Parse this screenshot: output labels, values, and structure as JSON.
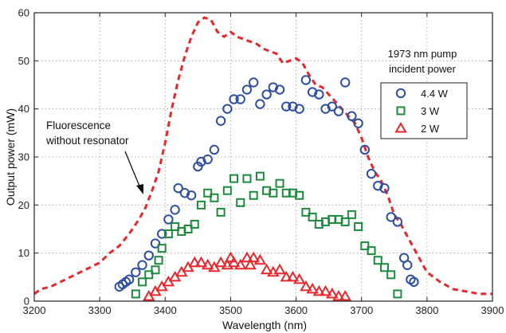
{
  "chart_data": {
    "type": "scatter",
    "xlabel": "Wavelength (nm)",
    "ylabel": "Output power (mW)",
    "xlim": [
      3200,
      3900
    ],
    "ylim": [
      0,
      60
    ],
    "xticks": [
      3200,
      3300,
      3400,
      3500,
      3600,
      3700,
      3800,
      3900
    ],
    "yticks": [
      0,
      10,
      20,
      30,
      40,
      50,
      60
    ],
    "grid": true,
    "legend": {
      "title_line1": "1973 nm pump",
      "title_line2": "incident power",
      "placement": "top-right"
    },
    "annotation": {
      "line1": "Fluorescence",
      "line2": "without resonator"
    },
    "fluorescence": {
      "style": "dashed",
      "color": "#e8262b",
      "x": [
        3200,
        3210,
        3225,
        3240,
        3255,
        3270,
        3285,
        3300,
        3315,
        3330,
        3345,
        3360,
        3370,
        3380,
        3390,
        3400,
        3410,
        3420,
        3430,
        3440,
        3450,
        3460,
        3470,
        3480,
        3490,
        3500,
        3510,
        3520,
        3530,
        3540,
        3550,
        3560,
        3570,
        3580,
        3590,
        3600,
        3610,
        3620,
        3630,
        3640,
        3650,
        3660,
        3670,
        3680,
        3690,
        3700,
        3710,
        3720,
        3730,
        3740,
        3750,
        3760,
        3770,
        3780,
        3790,
        3800,
        3820,
        3840,
        3860,
        3880,
        3900
      ],
      "y": [
        1.5,
        2.5,
        3,
        4,
        5,
        6,
        7,
        8,
        10,
        11.5,
        14,
        17,
        19.5,
        23,
        27,
        33,
        40,
        46,
        51,
        55,
        58,
        59,
        58.5,
        56,
        55,
        56,
        55,
        54.5,
        54,
        53.5,
        52.5,
        52,
        51.5,
        49.5,
        50,
        50.5,
        49.5,
        47,
        45,
        44.5,
        43,
        41.5,
        40,
        38.5,
        37,
        34,
        30,
        27,
        25,
        22,
        18,
        16,
        13.5,
        11,
        8.5,
        6,
        4,
        2.5,
        2,
        1.5,
        1.5
      ]
    },
    "series": [
      {
        "name": "4.4 W",
        "marker": "circle",
        "color": "#2e4fa0",
        "x": [
          3330,
          3335,
          3340,
          3345,
          3355,
          3365,
          3375,
          3385,
          3395,
          3405,
          3415,
          3420,
          3430,
          3440,
          3450,
          3455,
          3465,
          3475,
          3485,
          3495,
          3505,
          3515,
          3525,
          3535,
          3545,
          3555,
          3565,
          3575,
          3585,
          3595,
          3605,
          3615,
          3625,
          3635,
          3645,
          3655,
          3665,
          3675,
          3685,
          3695,
          3705,
          3715,
          3725,
          3735,
          3745,
          3755,
          3765,
          3770,
          3775,
          3780
        ],
        "y": [
          3,
          3.5,
          4,
          4.5,
          6,
          7.5,
          9.5,
          12,
          14,
          17,
          19,
          23.5,
          22.5,
          22,
          28,
          29,
          29.5,
          31.5,
          37.5,
          40,
          42,
          42,
          44,
          45.5,
          41,
          43,
          44.5,
          44,
          40.5,
          40.5,
          40,
          46,
          43.5,
          43,
          40,
          40.5,
          39.5,
          45.5,
          38.5,
          37,
          31.5,
          26.5,
          24,
          23.5,
          17.5,
          16.5,
          9,
          7.5,
          4.5,
          4
        ]
      },
      {
        "name": "3 W",
        "marker": "square",
        "color": "#1c8a3c",
        "x": [
          3355,
          3365,
          3375,
          3385,
          3390,
          3395,
          3405,
          3415,
          3425,
          3435,
          3445,
          3455,
          3465,
          3475,
          3485,
          3495,
          3505,
          3515,
          3525,
          3535,
          3545,
          3555,
          3565,
          3575,
          3585,
          3595,
          3605,
          3615,
          3625,
          3635,
          3645,
          3655,
          3665,
          3675,
          3685,
          3695,
          3705,
          3715,
          3725,
          3735,
          3745,
          3755
        ],
        "y": [
          1.5,
          4,
          5.5,
          6.5,
          8.5,
          11,
          14,
          15.5,
          14.5,
          15,
          16,
          20,
          22.5,
          21.5,
          18.5,
          23,
          25.5,
          20.5,
          25.5,
          22,
          26,
          23,
          22.5,
          24.5,
          22.5,
          22.5,
          22,
          18.5,
          17.5,
          16,
          16.5,
          17,
          17,
          16.5,
          18,
          15.5,
          11.5,
          10.5,
          8.5,
          7,
          5.5,
          1.5
        ]
      },
      {
        "name": "2 W",
        "marker": "triangle",
        "color": "#e8262b",
        "x": [
          3375,
          3385,
          3395,
          3405,
          3415,
          3425,
          3435,
          3445,
          3455,
          3465,
          3475,
          3485,
          3495,
          3500,
          3505,
          3515,
          3525,
          3530,
          3535,
          3545,
          3555,
          3565,
          3575,
          3585,
          3595,
          3605,
          3615,
          3625,
          3635,
          3645,
          3655,
          3665,
          3675
        ],
        "y": [
          1,
          2,
          3,
          4,
          5,
          6,
          7,
          8,
          8,
          7.5,
          7,
          8,
          7.5,
          9,
          8,
          7.5,
          9,
          7.5,
          9,
          8.5,
          6.5,
          6,
          6.5,
          5,
          5,
          4.5,
          3,
          2.5,
          2,
          2,
          1.5,
          1,
          1
        ]
      }
    ]
  }
}
